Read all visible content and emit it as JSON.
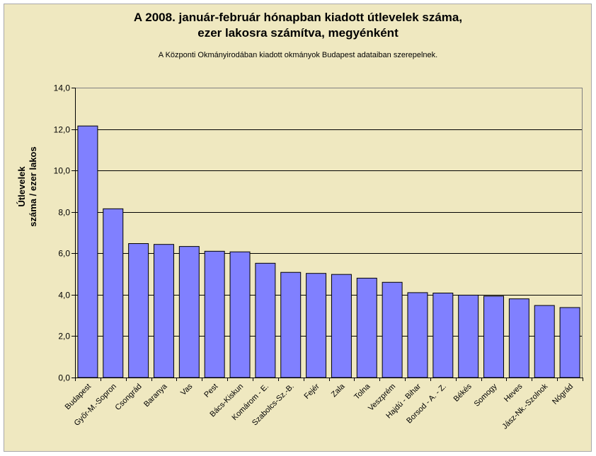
{
  "chart_data": {
    "type": "bar",
    "title_lines": [
      "A 2008. január-február hónapban kiadott útlevelek száma,",
      "ezer lakosra számítva, megyénként"
    ],
    "subtitle": "A Központi Okmányirodában kiadott okmányok Budapest adataiban szerepelnek.",
    "ylabel_lines": [
      "Útlevelek",
      "száma / ezer lakos"
    ],
    "xlabel": "",
    "ylim": [
      0,
      14
    ],
    "yticks": [
      "0,0",
      "2,0",
      "4,0",
      "6,0",
      "8,0",
      "10,0",
      "12,0",
      "14,0"
    ],
    "grid": true,
    "categories": [
      "Budapest",
      "Győr-M.-Sopron",
      "Csongrád",
      "Baranya",
      "Vas",
      "Pest",
      "Bács-Kiskun",
      "Komárom - E.",
      "Szabolcs-Sz.-B.",
      "Fejér",
      "Zala",
      "Tolna",
      "Veszprém",
      "Hajdú - Bihar",
      "Borsod - A. - Z.",
      "Békés",
      "Somogy",
      "Heves",
      "Jász-Nk.-Szolnok",
      "Nógrád"
    ],
    "values": [
      12.15,
      8.15,
      6.47,
      6.43,
      6.33,
      6.1,
      6.07,
      5.52,
      5.08,
      5.03,
      4.98,
      4.8,
      4.6,
      4.1,
      4.08,
      3.98,
      3.93,
      3.8,
      3.48,
      3.38
    ],
    "bar_color": "#8080ff",
    "plot_bg": "#efe8c0"
  }
}
